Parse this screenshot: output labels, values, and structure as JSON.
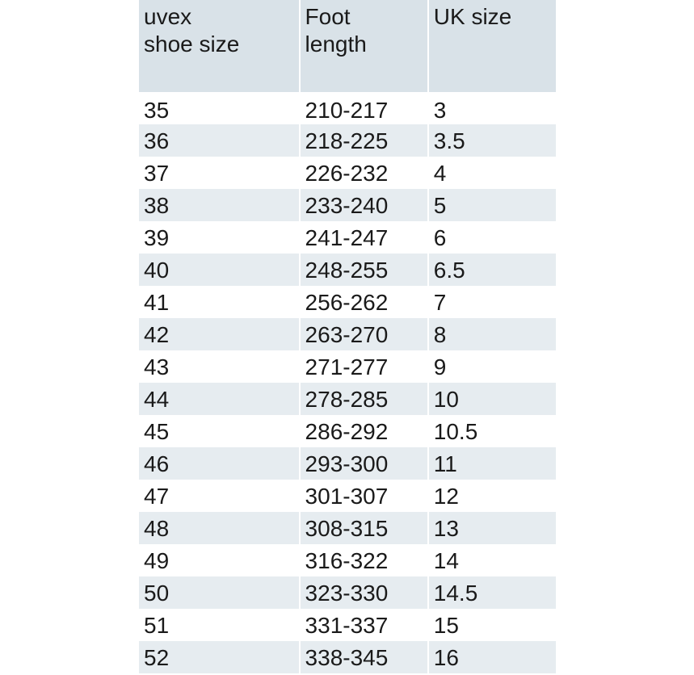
{
  "table": {
    "headers": [
      "uvex\nshoe size",
      "Foot\nlength",
      "UK size"
    ],
    "header_lines": [
      [
        "uvex",
        "shoe size"
      ],
      [
        "Foot",
        "length"
      ],
      [
        "UK size"
      ]
    ],
    "rows": [
      [
        "35",
        "210-217",
        "3"
      ],
      [
        "36",
        "218-225",
        "3.5"
      ],
      [
        "37",
        "226-232",
        "4"
      ],
      [
        "38",
        "233-240",
        "5"
      ],
      [
        "39",
        "241-247",
        "6"
      ],
      [
        "40",
        "248-255",
        "6.5"
      ],
      [
        "41",
        "256-262",
        "7"
      ],
      [
        "42",
        "263-270",
        "8"
      ],
      [
        "43",
        "271-277",
        "9"
      ],
      [
        "44",
        "278-285",
        "10"
      ],
      [
        "45",
        "286-292",
        "10.5"
      ],
      [
        "46",
        "293-300",
        "11"
      ],
      [
        "47",
        "301-307",
        "12"
      ],
      [
        "48",
        "308-315",
        "13"
      ],
      [
        "49",
        "316-322",
        "14"
      ],
      [
        "50",
        "323-330",
        "14.5"
      ],
      [
        "51",
        "331-337",
        "15"
      ],
      [
        "52",
        "338-345",
        "16"
      ]
    ]
  },
  "colors": {
    "header_bg": "#d9e2e8",
    "stripe_bg": "#e6ecf0",
    "text": "#1a1a1a"
  }
}
